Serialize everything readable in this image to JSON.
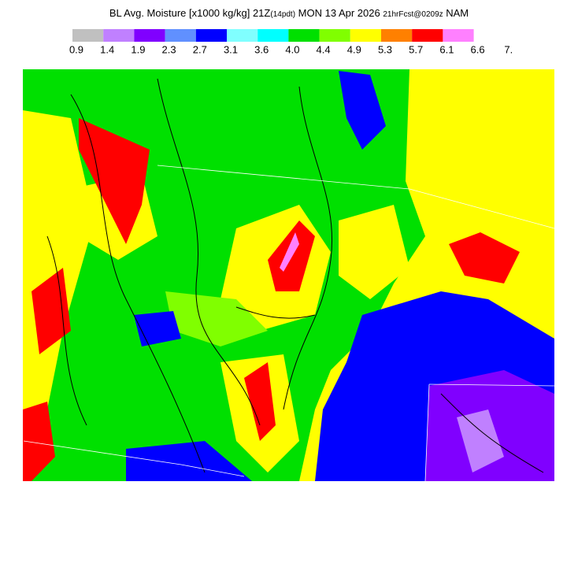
{
  "header": {
    "title_parts": [
      {
        "text": "BL Avg. Moisture [x1000 kg/kg] 21Z",
        "size": 13
      },
      {
        "text": "(14pdt)",
        "size": 10
      },
      {
        "text": " MON 13 Apr 2026 ",
        "size": 13
      },
      {
        "text": "21hrFcst@0209z",
        "size": 10
      },
      {
        "text": " NAM",
        "size": 13
      }
    ]
  },
  "legend": {
    "colors": [
      "#c0c0c0",
      "#c080ff",
      "#8000ff",
      "#6090ff",
      "#0000ff",
      "#80ffff",
      "#00ffff",
      "#00e000",
      "#80ff00",
      "#ffff00",
      "#ff8000",
      "#ff0000",
      "#ff80ff"
    ],
    "labels": [
      0.9,
      1.4,
      1.9,
      2.3,
      2.7,
      3.1,
      3.6,
      4.0,
      4.4,
      4.9,
      5.3,
      5.7,
      6.1,
      6.6,
      {
        "value": 7,
        "label": "7."
      }
    ]
  }
}
